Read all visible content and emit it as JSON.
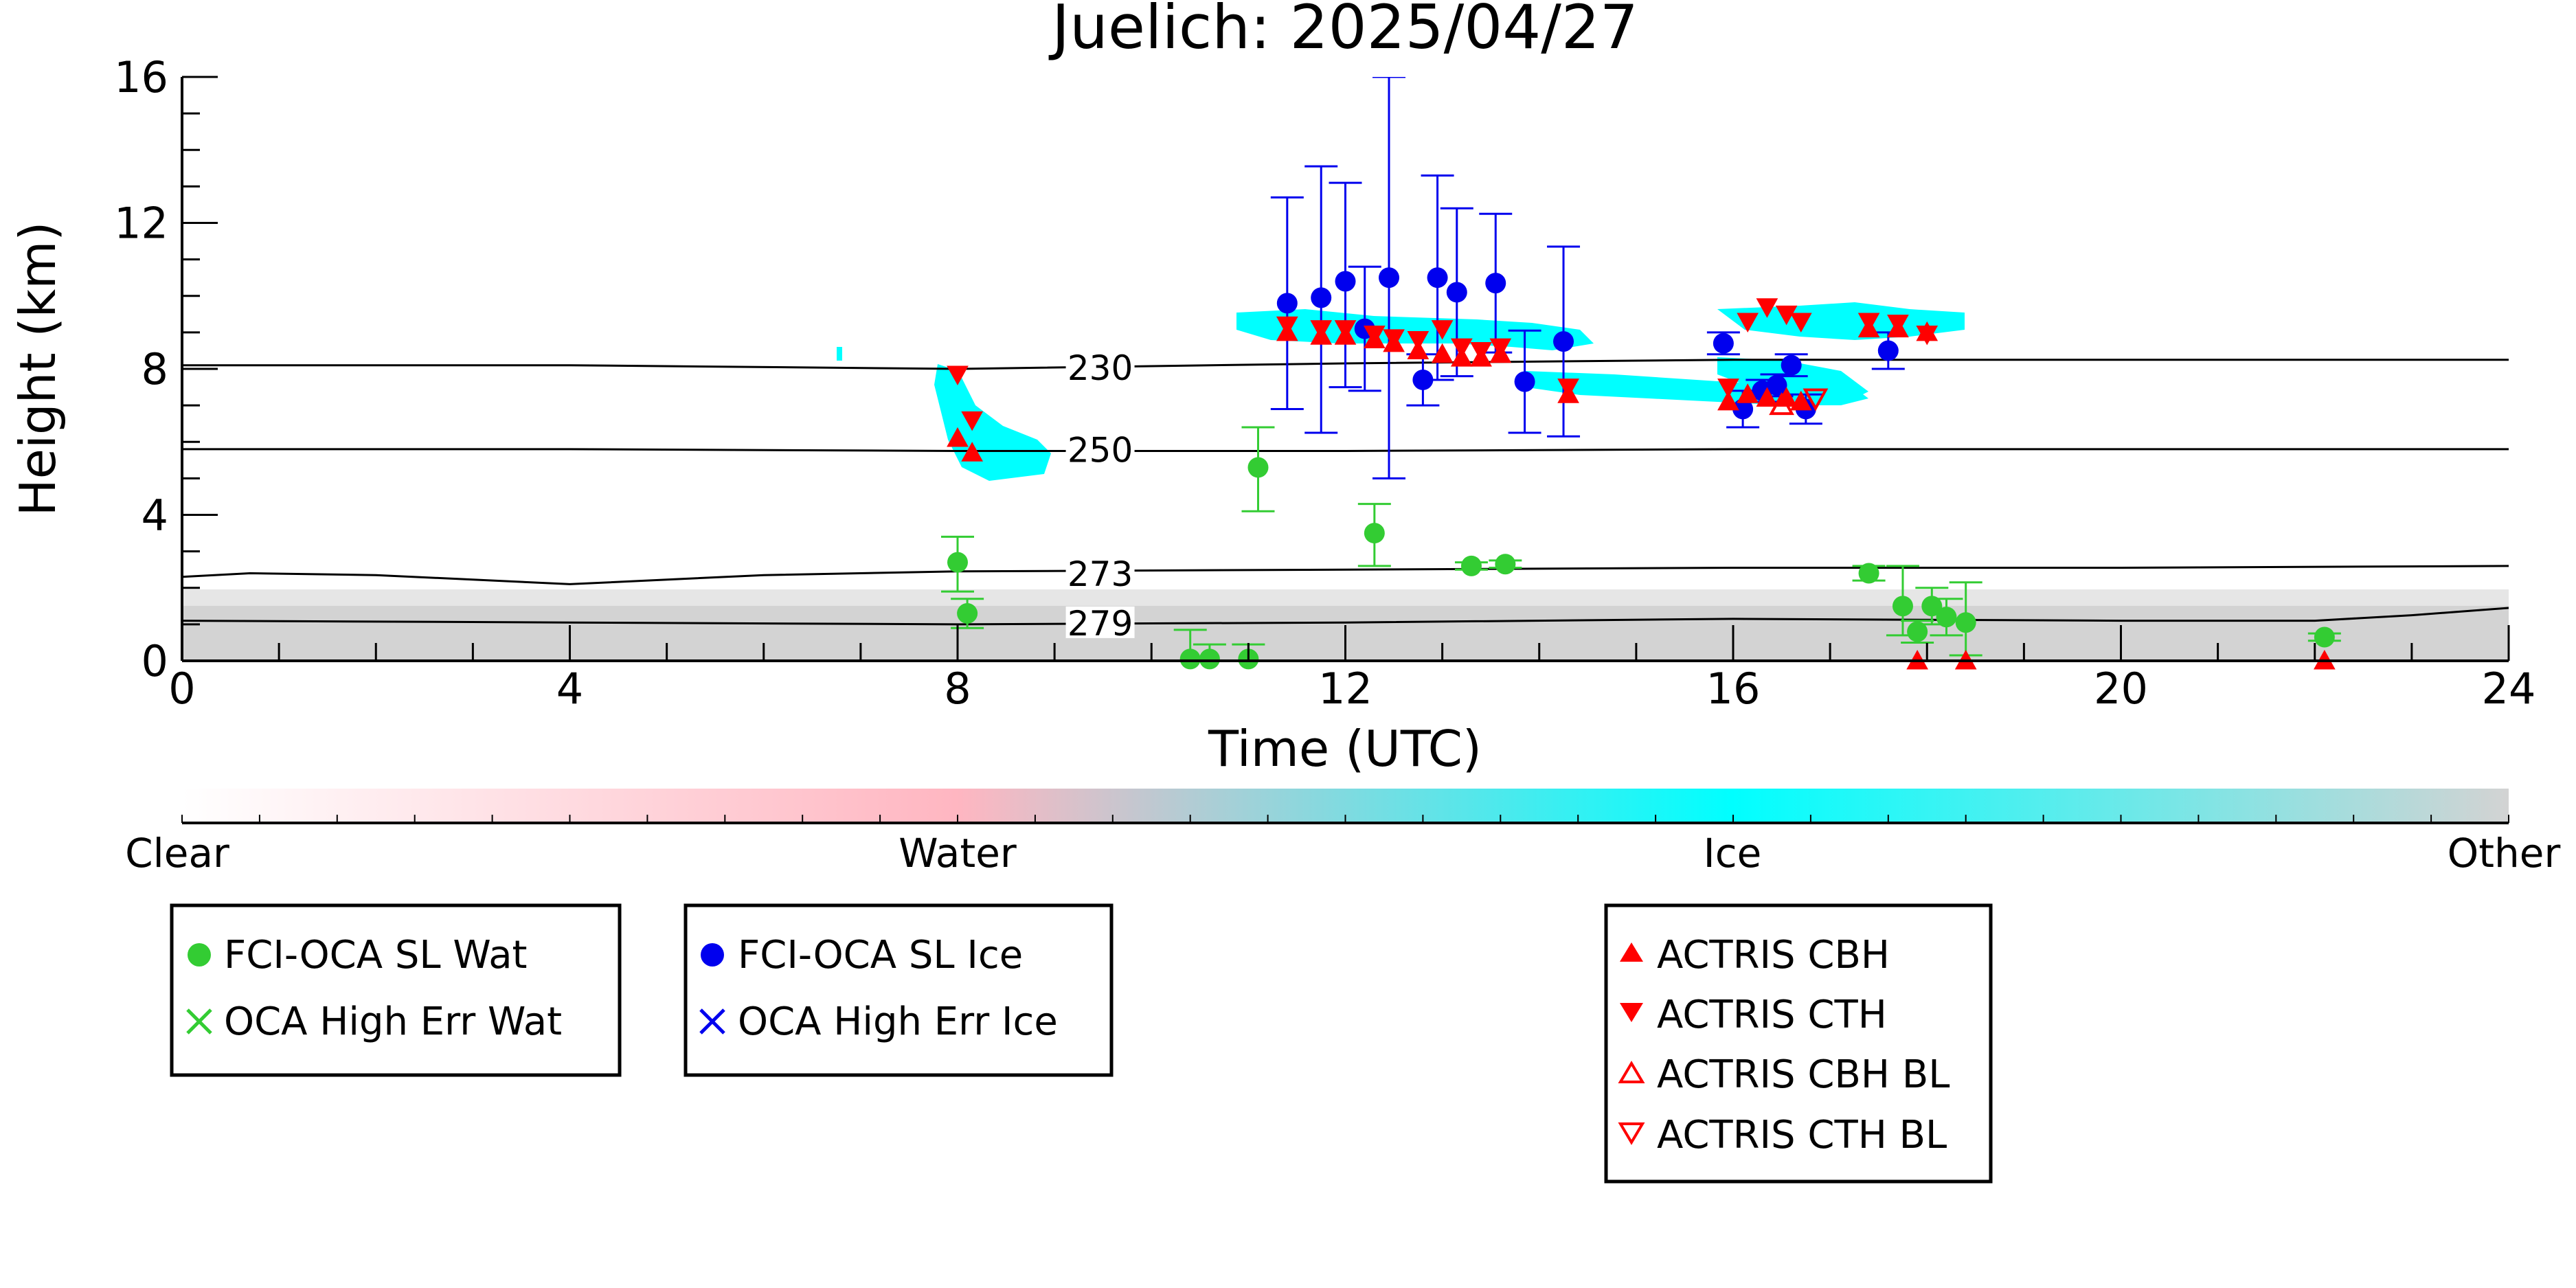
{
  "chart_data": {
    "type": "scatter",
    "title": "Juelich: 2025/04/27",
    "xlabel": "Time (UTC)",
    "ylabel": "Height (km)",
    "xlim": [
      0,
      24
    ],
    "ylim": [
      0,
      16
    ],
    "x_ticks": [
      "0",
      "4",
      "8",
      "12",
      "16",
      "20",
      "24"
    ],
    "y_ticks": [
      "0",
      "4",
      "8",
      "12",
      "16"
    ],
    "isotherms": [
      {
        "label": "230",
        "points": [
          [
            0,
            8.1
          ],
          [
            4,
            8.1
          ],
          [
            8,
            8.0
          ],
          [
            12,
            8.15
          ],
          [
            16,
            8.25
          ],
          [
            20,
            8.25
          ],
          [
            24,
            8.25
          ]
        ]
      },
      {
        "label": "250",
        "points": [
          [
            0,
            5.8
          ],
          [
            4,
            5.8
          ],
          [
            8,
            5.75
          ],
          [
            12,
            5.75
          ],
          [
            16,
            5.8
          ],
          [
            20,
            5.8
          ],
          [
            24,
            5.8
          ]
        ]
      },
      {
        "label": "273",
        "points": [
          [
            0,
            2.3
          ],
          [
            0.7,
            2.4
          ],
          [
            2,
            2.35
          ],
          [
            4,
            2.1
          ],
          [
            6,
            2.35
          ],
          [
            8,
            2.45
          ],
          [
            12,
            2.5
          ],
          [
            16,
            2.55
          ],
          [
            20,
            2.55
          ],
          [
            24,
            2.6
          ]
        ]
      },
      {
        "label": "279",
        "points": [
          [
            0,
            1.1
          ],
          [
            4,
            1.05
          ],
          [
            8,
            1.0
          ],
          [
            12,
            1.05
          ],
          [
            16,
            1.15
          ],
          [
            20,
            1.1
          ],
          [
            22,
            1.1
          ],
          [
            23,
            1.25
          ],
          [
            24,
            1.45
          ]
        ]
      }
    ],
    "colorbar": {
      "labels": [
        "Clear",
        "Water",
        "Ice",
        "Other"
      ],
      "colors": {
        "clear": "#ffffff",
        "water": "#ffb6c1",
        "ice": "#00ffff",
        "other": "#d3d3d3"
      }
    },
    "series": [
      {
        "name": "FCI-OCA SL Wat",
        "marker": "circle",
        "color": "#33cc33",
        "points": [
          {
            "x": 8.0,
            "y": 2.7,
            "err_lo": 0.8,
            "err_hi": 0.7
          },
          {
            "x": 8.1,
            "y": 1.3,
            "err_lo": 0.4,
            "err_hi": 0.4
          },
          {
            "x": 10.4,
            "y": 0.05,
            "err_lo": 0.05,
            "err_hi": 0.8
          },
          {
            "x": 10.6,
            "y": 0.05,
            "err_lo": 0.05,
            "err_hi": 0.4
          },
          {
            "x": 11.0,
            "y": 0.05,
            "err_lo": 0.05,
            "err_hi": 0.4
          },
          {
            "x": 11.1,
            "y": 5.3,
            "err_lo": 1.2,
            "err_hi": 1.1
          },
          {
            "x": 12.3,
            "y": 3.5,
            "err_lo": 0.9,
            "err_hi": 0.8
          },
          {
            "x": 13.3,
            "y": 2.6,
            "err_lo": 0.1,
            "err_hi": 0.1
          },
          {
            "x": 13.65,
            "y": 2.65,
            "err_lo": 0.1,
            "err_hi": 0.1
          },
          {
            "x": 17.4,
            "y": 2.4,
            "err_lo": 0.2,
            "err_hi": 0.2
          },
          {
            "x": 17.75,
            "y": 1.5,
            "err_lo": 0.8,
            "err_hi": 1.1
          },
          {
            "x": 17.9,
            "y": 0.8,
            "err_lo": 0.3,
            "err_hi": 0.3
          },
          {
            "x": 18.05,
            "y": 1.5,
            "err_lo": 0.5,
            "err_hi": 0.5
          },
          {
            "x": 18.2,
            "y": 1.2,
            "err_lo": 0.5,
            "err_hi": 0.5
          },
          {
            "x": 18.4,
            "y": 1.05,
            "err_lo": 0.9,
            "err_hi": 1.1
          },
          {
            "x": 22.1,
            "y": 0.65,
            "err_lo": 0.1,
            "err_hi": 0.1
          }
        ]
      },
      {
        "name": "OCA High Err Wat",
        "marker": "x",
        "color": "#33cc33",
        "points": []
      },
      {
        "name": "FCI-OCA SL Ice",
        "marker": "circle",
        "color": "#0000ee",
        "points": [
          {
            "x": 11.4,
            "y": 9.8,
            "err_lo": 2.9,
            "err_hi": 2.9
          },
          {
            "x": 11.75,
            "y": 9.95,
            "err_lo": 3.7,
            "err_hi": 3.6
          },
          {
            "x": 12.0,
            "y": 10.4,
            "err_lo": 2.9,
            "err_hi": 2.7
          },
          {
            "x": 12.2,
            "y": 9.1,
            "err_lo": 1.7,
            "err_hi": 1.7
          },
          {
            "x": 12.45,
            "y": 10.5,
            "err_lo": 5.5,
            "err_hi": 5.5
          },
          {
            "x": 12.8,
            "y": 7.7,
            "err_lo": 0.7,
            "err_hi": 0.7
          },
          {
            "x": 12.95,
            "y": 10.5,
            "err_lo": 2.8,
            "err_hi": 2.8
          },
          {
            "x": 13.15,
            "y": 10.1,
            "err_lo": 2.3,
            "err_hi": 2.3
          },
          {
            "x": 13.55,
            "y": 10.35,
            "err_lo": 1.9,
            "err_hi": 1.9
          },
          {
            "x": 13.85,
            "y": 7.65,
            "err_lo": 1.4,
            "err_hi": 1.4
          },
          {
            "x": 14.25,
            "y": 8.75,
            "err_lo": 2.6,
            "err_hi": 2.6
          },
          {
            "x": 15.9,
            "y": 8.7,
            "err_lo": 0.3,
            "err_hi": 0.3
          },
          {
            "x": 16.1,
            "y": 6.9,
            "err_lo": 0.5,
            "err_hi": 0.5
          },
          {
            "x": 16.3,
            "y": 7.4,
            "err_lo": 0.3,
            "err_hi": 0.3
          },
          {
            "x": 16.45,
            "y": 7.55,
            "err_lo": 0.3,
            "err_hi": 0.3
          },
          {
            "x": 16.6,
            "y": 8.1,
            "err_lo": 0.3,
            "err_hi": 0.3
          },
          {
            "x": 16.75,
            "y": 6.9,
            "err_lo": 0.4,
            "err_hi": 0.4
          },
          {
            "x": 17.6,
            "y": 8.5,
            "err_lo": 0.5,
            "err_hi": 0.5
          }
        ]
      },
      {
        "name": "OCA High Err Ice",
        "marker": "x",
        "color": "#0000ee",
        "points": []
      },
      {
        "name": "ACTRIS CBH",
        "marker": "triangle-up",
        "color": "#ff0000",
        "points": [
          {
            "x": 8.0,
            "y": 6.1
          },
          {
            "x": 8.15,
            "y": 5.7
          },
          {
            "x": 11.4,
            "y": 9.0
          },
          {
            "x": 11.75,
            "y": 8.9
          },
          {
            "x": 12.0,
            "y": 8.9
          },
          {
            "x": 12.3,
            "y": 8.8
          },
          {
            "x": 12.5,
            "y": 8.7
          },
          {
            "x": 12.75,
            "y": 8.5
          },
          {
            "x": 13.0,
            "y": 8.4
          },
          {
            "x": 13.2,
            "y": 8.3
          },
          {
            "x": 13.4,
            "y": 8.3
          },
          {
            "x": 13.6,
            "y": 8.4
          },
          {
            "x": 14.3,
            "y": 7.3
          },
          {
            "x": 15.95,
            "y": 7.1
          },
          {
            "x": 16.15,
            "y": 7.3
          },
          {
            "x": 16.35,
            "y": 7.2
          },
          {
            "x": 16.55,
            "y": 7.2
          },
          {
            "x": 16.7,
            "y": 7.1
          },
          {
            "x": 17.4,
            "y": 9.1
          },
          {
            "x": 17.7,
            "y": 9.1
          },
          {
            "x": 18.0,
            "y": 9.0
          },
          {
            "x": 17.9,
            "y": 0.0
          },
          {
            "x": 18.4,
            "y": 0.0
          },
          {
            "x": 22.1,
            "y": 0.0
          }
        ]
      },
      {
        "name": "ACTRIS CTH",
        "marker": "triangle-down",
        "color": "#ff0000",
        "points": [
          {
            "x": 8.0,
            "y": 7.85
          },
          {
            "x": 8.15,
            "y": 6.6
          },
          {
            "x": 11.4,
            "y": 9.2
          },
          {
            "x": 11.75,
            "y": 9.1
          },
          {
            "x": 12.0,
            "y": 9.1
          },
          {
            "x": 12.3,
            "y": 8.95
          },
          {
            "x": 12.5,
            "y": 8.85
          },
          {
            "x": 12.75,
            "y": 8.8
          },
          {
            "x": 13.0,
            "y": 9.1
          },
          {
            "x": 13.2,
            "y": 8.6
          },
          {
            "x": 13.4,
            "y": 8.5
          },
          {
            "x": 13.6,
            "y": 8.6
          },
          {
            "x": 14.3,
            "y": 7.5
          },
          {
            "x": 15.95,
            "y": 7.5
          },
          {
            "x": 16.15,
            "y": 9.3
          },
          {
            "x": 16.35,
            "y": 9.7
          },
          {
            "x": 16.55,
            "y": 9.5
          },
          {
            "x": 16.7,
            "y": 9.3
          },
          {
            "x": 17.4,
            "y": 9.3
          },
          {
            "x": 17.7,
            "y": 9.25
          },
          {
            "x": 18.0,
            "y": 8.95
          }
        ]
      },
      {
        "name": "ACTRIS CBH BL",
        "marker": "triangle-up-open",
        "color": "#ff0000",
        "points": [
          {
            "x": 16.5,
            "y": 7.0
          }
        ]
      },
      {
        "name": "ACTRIS CTH BL",
        "marker": "triangle-down-open",
        "color": "#ff0000",
        "points": [
          {
            "x": 16.85,
            "y": 7.2
          }
        ]
      }
    ],
    "legends": [
      {
        "items": [
          "FCI-OCA SL Wat",
          "OCA High Err Wat"
        ]
      },
      {
        "items": [
          "FCI-OCA SL Ice",
          "OCA High Err Ice"
        ]
      },
      {
        "items": [
          "ACTRIS CBH",
          "ACTRIS CTH",
          "ACTRIS CBH BL",
          "ACTRIS CTH BL"
        ]
      }
    ]
  }
}
